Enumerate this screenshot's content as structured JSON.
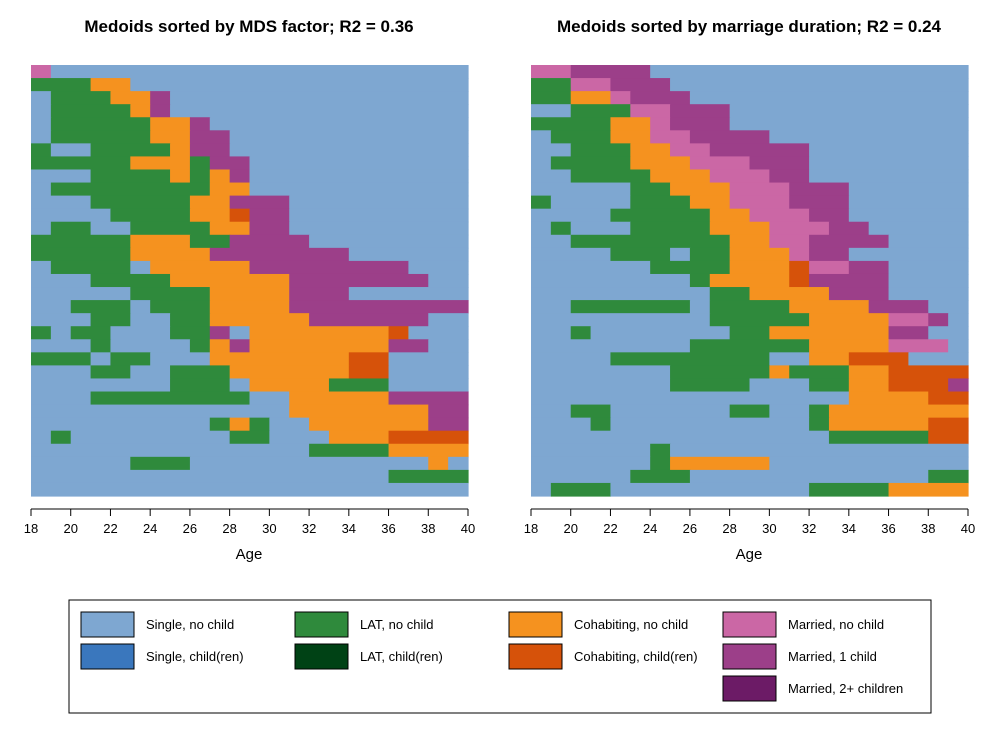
{
  "chart_data": [
    {
      "type": "heatmap",
      "title": "Medoids sorted by MDS factor; R2 = 0.36",
      "xlabel": "Age",
      "xlim": [
        18,
        40
      ],
      "x_ticks": [
        "18",
        "20",
        "22",
        "24",
        "26",
        "28",
        "30",
        "32",
        "34",
        "36",
        "38",
        "40"
      ],
      "ages": [
        18,
        19,
        20,
        21,
        22,
        23,
        24,
        25,
        26,
        27,
        28,
        29,
        30,
        31,
        32,
        33,
        34,
        35,
        36,
        37,
        38,
        39
      ],
      "rows": [
        "MSSSSSSSSSSSSSSSSSSSSS",
        "LLLCCSSSSSSSSSSSSSSSSS",
        "SLLLCCNSSSSSSSSSSSSSSS",
        "SLLLLCNSSSSSSSSSSSSSSS",
        "SLLLLLCCNSSSSSSSSSSSSS",
        "SLLLLLCCNNSSSSSSSSSSSS",
        "LSSLLLLCNNSSSSSSSSSSSS",
        "LLLLLCCCLNNSSSSSSSSSSS",
        "SSSLLLLCLCNSSSSSSSSSSS",
        "SLLLLLLLLCCSSSSSSSSSSS",
        "SSSLLLLLCCNNNSSSSSSSSS",
        "SSSSLLLLCCKNNSSSSSSSSS",
        "SLLSSLLLLCCNNSSSSSSSSS",
        "LLLLLCCCLLNNNNSSSSSSSS",
        "LLLLLCCCCNNNNNNNSSSSSS",
        "SLLLLSCCCCCNNNNNNNNSSS",
        "SSSLLLLCCCCCCNNNNNNNSS",
        "SSSSSLLLLCCCCNNNSSSSSS",
        "SSLLLSLLLCCCCNNNNNNNNN",
        "SSSLLSSLLCCCCCNNNNNNSS",
        "LSLLSSSLLNSCCCCCCCKSSS",
        "SSSLSSSSLCNCCCCCCCNNSS",
        "LLLSLLSSSCCCCCCCKKSSSS",
        "SSSLLSSLLLCCCCCCKKSSSS",
        "SSSSSSSLLLSCCCCLLLSSSS",
        "SSSLLLLLLLLSSCCCCCNNNN",
        "SSSSSSSSSSSSSCCCCCCCNN",
        "SSSSSSSSSLCLSSCCCCCCNN",
        "SLSSSSSSSSLLSSSCCCKKKK",
        "SSSSSSSSSSSSSSLLLLCCCC",
        "SSSSSLLLSSSSSSSSSSSSCS",
        "SSSSSSSSSSSSSSSSSSLLLL",
        "SSSSSSSSSSSSSSSSSSSSSS"
      ]
    },
    {
      "type": "heatmap",
      "title": "Medoids sorted by marriage duration; R2 = 0.24",
      "xlabel": "Age",
      "xlim": [
        18,
        40
      ],
      "x_ticks": [
        "18",
        "20",
        "22",
        "24",
        "26",
        "28",
        "30",
        "32",
        "34",
        "36",
        "38",
        "40"
      ],
      "ages": [
        18,
        19,
        20,
        21,
        22,
        23,
        24,
        25,
        26,
        27,
        28,
        29,
        30,
        31,
        32,
        33,
        34,
        35,
        36,
        37,
        38,
        39
      ],
      "rows": [
        "MMNNNNSSSSSSSSSSSSSSSS",
        "LLMMNNNSSSSSSSSSSSSSSS",
        "LLCCMNNNSSSSSSSSSSSSSS",
        "SSLLLMMNNNSSSSSSSSSSSS",
        "LLLLCCMNNNSSSSSSSSSSSS",
        "SLLLCCMMNNNNSSSSSSSSSS",
        "SSLLLCCMMNNNNNSSSSSSSS",
        "SLLLLCCCMMMNNNSSSSSSSS",
        "SSLLLLCCCMMMNNSSSSSSSS",
        "SSSSSLLCCCMMMNNNSSSSSS",
        "LSSSSLLLCCMMMNNNSSSSSS",
        "SSSSLLLLLCCMMMNNSSSSSS",
        "SLSSSLLLLCCCMMMNNSSSSS",
        "SSLLLLLLLLCCMMNNNNSSSS",
        "SSSSLLLSLLCCCMNNSSSSSS",
        "SSSSSSLLLLCCCKMMNNSSSS",
        "SSSSSSSSLCCCCKNNNNSSSS",
        "SSSSSSSSSLLCCCCNNNSSSS",
        "SSLLLLLLSLLLLCCCCNNNSS",
        "SSSSSSSSSLLLLLCCCCMMNS",
        "SSLSSSSSSSLLCCCCCCNNSS",
        "SSSSSSSSLLLLLLCCCCMMMS",
        "SSSSLLLLLLLLSSCCKKKSSS",
        "SSSSSSSLLLLLCLLLCCKKKK",
        "SSSSSSSLLLLSSSLLCCKKKN",
        "SSSSSSSSSSSSSSSSCCCCKK",
        "SSLLSSSSSSLLSSLCCCCCCC",
        "SSSLSSSSSSSSSSLCCCCCKK",
        "SSSSSSSSSSSSSSSLLLLLKK",
        "SSSSSSLSSSSSSSSSSSSSSS",
        "SSSSSSLCCCCCSSSSSSSSSS",
        "SSSSSLLLSSSSSSSSSSSSLL",
        "SLLLSSSSSSSSSSLLLLCCCC"
      ]
    }
  ],
  "legend": {
    "items": [
      {
        "code": "S",
        "label": "Single, no child",
        "color": "#7ea7d1"
      },
      {
        "code": "B",
        "label": "Single, child(ren)",
        "color": "#3a77bd"
      },
      {
        "code": "L",
        "label": "LAT, no child",
        "color": "#2f8a3c"
      },
      {
        "code": "D",
        "label": "LAT, child(ren)",
        "color": "#004215"
      },
      {
        "code": "C",
        "label": "Cohabiting, no child",
        "color": "#f5921f"
      },
      {
        "code": "K",
        "label": "Cohabiting, child(ren)",
        "color": "#d6520a"
      },
      {
        "code": "M",
        "label": "Married, no child",
        "color": "#cb67a5"
      },
      {
        "code": "N",
        "label": "Married, 1 child",
        "color": "#9c3f89"
      },
      {
        "code": "P",
        "label": "Married, 2+ children",
        "color": "#6c1b66"
      }
    ]
  }
}
